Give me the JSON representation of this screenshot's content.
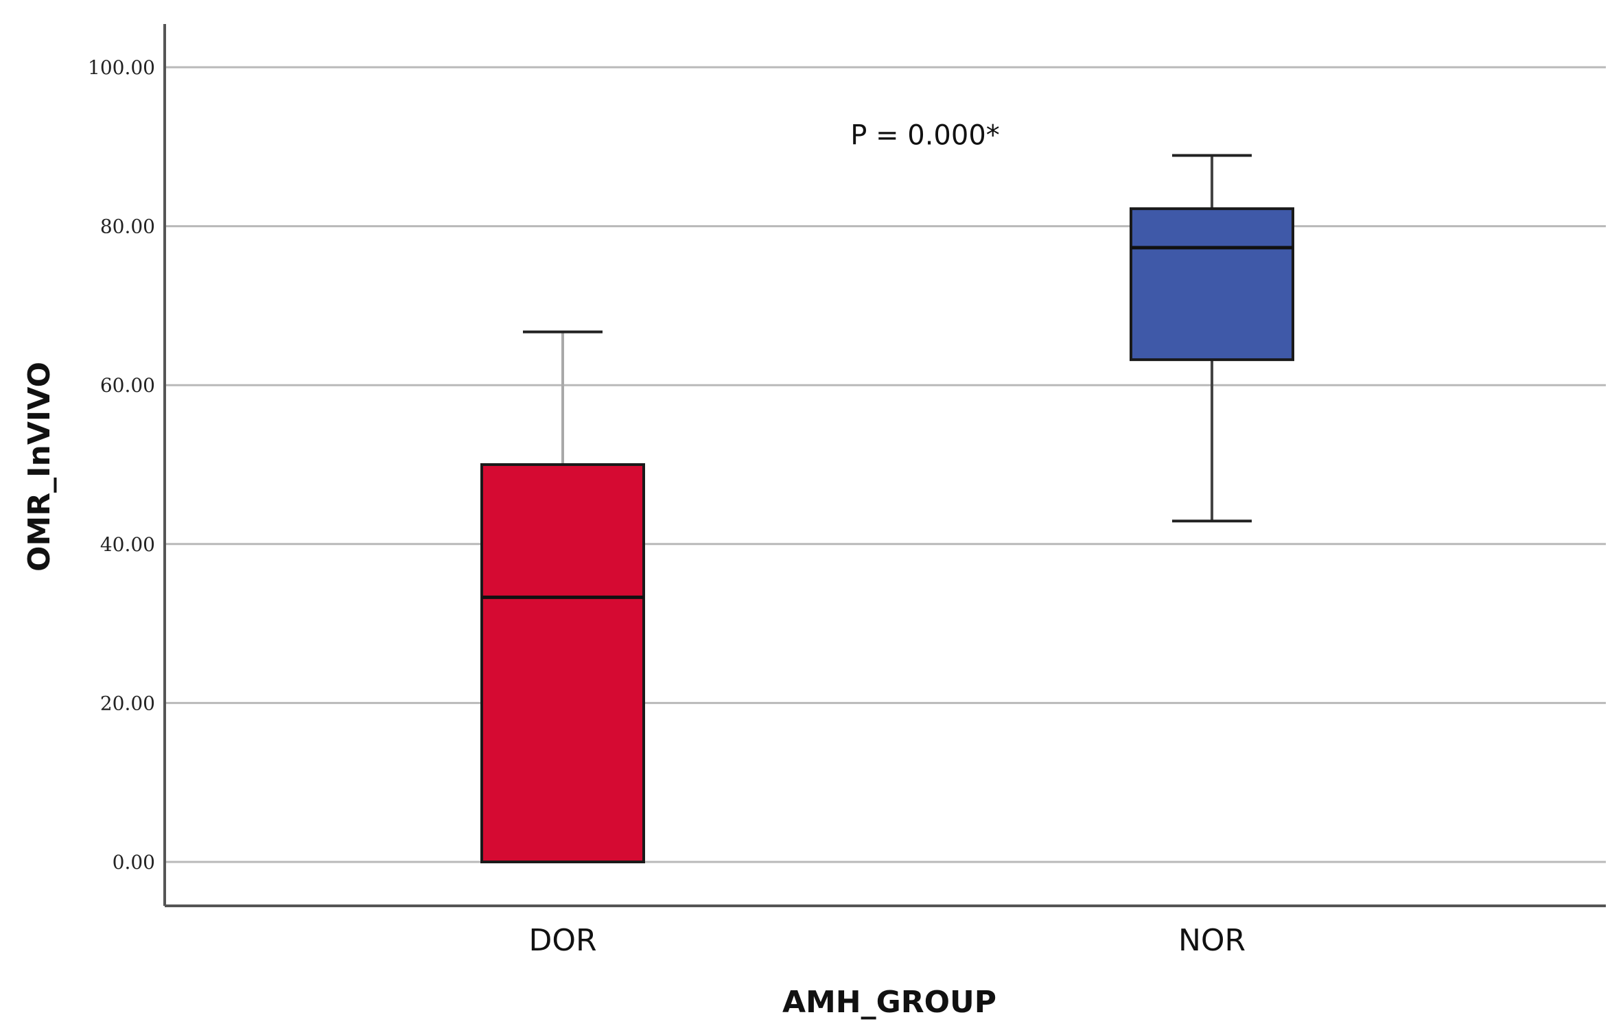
{
  "chart_data": {
    "type": "box",
    "title": "",
    "xlabel": "AMH_GROUP",
    "ylabel": "OMR_InVIVO",
    "ylim": [
      0,
      100
    ],
    "yticks": [
      0,
      20,
      40,
      60,
      80,
      100
    ],
    "ytick_labels": [
      "0.00",
      "20.00",
      "40.00",
      "60.00",
      "80.00",
      "100.00"
    ],
    "grid": "horizontal",
    "categories": [
      "DOR",
      "NOR"
    ],
    "boxes": [
      {
        "category": "DOR",
        "min": 0,
        "q1": 0,
        "median": 33.3,
        "q3": 50,
        "max": 66.7,
        "color": "#d50a32"
      },
      {
        "category": "NOR",
        "min": 42.9,
        "q1": 63.2,
        "median": 77.3,
        "q3": 82.2,
        "max": 88.9,
        "color": "#3f59a8"
      }
    ],
    "annotations": [
      {
        "text": "P = 0.000*",
        "x_between": [
          "DOR",
          "NOR"
        ],
        "y": 91.5
      }
    ]
  }
}
